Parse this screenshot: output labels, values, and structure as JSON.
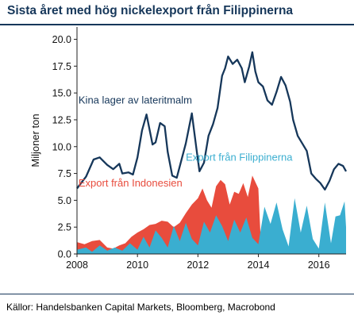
{
  "header": {
    "title": "Sista året med hög nickelexport från Filippinerna"
  },
  "footer": {
    "source": "Källor: Handelsbanken Capital Markets, Bloomberg, Macrobond"
  },
  "chart_data": {
    "type": "area",
    "title": "Sista året med hög nickelexport från Filippinerna",
    "ylabel": "Miljoner ton",
    "xlabel": "",
    "xlim": [
      2008,
      2016.9
    ],
    "ylim": [
      0,
      21
    ],
    "y_ticks": [
      "0.0",
      "2.5",
      "5.0",
      "7.5",
      "10.0",
      "12.5",
      "15.0",
      "17.5",
      "20.0"
    ],
    "x_ticks": [
      "2008",
      "2010",
      "2012",
      "2014",
      "2016"
    ],
    "grid": false,
    "series": [
      {
        "name": "Kina lager av lateritmalm",
        "type": "line",
        "color": "#16375a",
        "x": [
          2008.0,
          2008.3,
          2008.55,
          2008.75,
          2009.0,
          2009.2,
          2009.4,
          2009.5,
          2009.7,
          2009.85,
          2010.0,
          2010.15,
          2010.3,
          2010.5,
          2010.6,
          2010.75,
          2010.9,
          2011.0,
          2011.15,
          2011.3,
          2011.45,
          2011.6,
          2011.8,
          2011.95,
          2012.05,
          2012.2,
          2012.35,
          2012.5,
          2012.65,
          2012.8,
          2012.9,
          2013.0,
          2013.15,
          2013.3,
          2013.45,
          2013.55,
          2013.7,
          2013.8,
          2013.9,
          2014.0,
          2014.15,
          2014.3,
          2014.45,
          2014.6,
          2014.75,
          2014.9,
          2015.05,
          2015.15,
          2015.3,
          2015.45,
          2015.6,
          2015.75,
          2015.9,
          2016.05,
          2016.2,
          2016.35,
          2016.5,
          2016.65,
          2016.8,
          2016.9
        ],
        "values": [
          6.1,
          7.2,
          8.8,
          9.0,
          8.3,
          7.9,
          8.4,
          7.5,
          7.6,
          7.4,
          9.0,
          11.5,
          13.0,
          10.2,
          10.4,
          12.2,
          11.9,
          9.5,
          7.3,
          7.1,
          8.7,
          10.3,
          13.1,
          9.8,
          7.7,
          8.5,
          11.0,
          12.1,
          13.6,
          16.6,
          17.3,
          18.4,
          17.7,
          18.1,
          17.3,
          16.0,
          17.5,
          18.8,
          17.0,
          16.0,
          15.6,
          14.3,
          13.9,
          15.1,
          16.5,
          15.7,
          14.2,
          12.5,
          11.0,
          10.3,
          9.6,
          7.5,
          7.0,
          6.6,
          6.0,
          6.8,
          7.9,
          8.4,
          8.2,
          7.7
        ]
      },
      {
        "name": "Export från Indonesien",
        "type": "area",
        "color": "#e84c3d",
        "x": [
          2008.0,
          2008.25,
          2008.5,
          2008.75,
          2009.0,
          2009.2,
          2009.4,
          2009.6,
          2009.8,
          2010.0,
          2010.2,
          2010.4,
          2010.6,
          2010.8,
          2011.0,
          2011.2,
          2011.4,
          2011.6,
          2011.8,
          2012.0,
          2012.15,
          2012.3,
          2012.45,
          2012.6,
          2012.75,
          2012.9,
          2013.05,
          2013.2,
          2013.35,
          2013.5,
          2013.65,
          2013.8,
          2013.9,
          2014.0,
          2014.05,
          2014.1
        ],
        "values": [
          1.1,
          0.9,
          1.2,
          1.3,
          0.6,
          0.5,
          0.8,
          1.0,
          1.6,
          2.0,
          2.3,
          2.7,
          2.8,
          3.1,
          3.0,
          2.5,
          2.9,
          3.8,
          4.6,
          5.2,
          6.1,
          5.0,
          4.3,
          6.3,
          6.9,
          6.5,
          4.6,
          5.8,
          5.6,
          6.6,
          5.3,
          7.3,
          6.7,
          6.1,
          3.0,
          0.0
        ]
      },
      {
        "name": "Export från Filippinerna",
        "type": "area",
        "color": "#3aaed0",
        "x": [
          2008.0,
          2008.3,
          2008.5,
          2008.75,
          2009.0,
          2009.25,
          2009.5,
          2009.75,
          2010.0,
          2010.2,
          2010.4,
          2010.6,
          2010.8,
          2011.0,
          2011.2,
          2011.4,
          2011.6,
          2011.8,
          2012.0,
          2012.2,
          2012.4,
          2012.6,
          2012.8,
          2013.0,
          2013.2,
          2013.4,
          2013.6,
          2013.8,
          2014.0,
          2014.2,
          2014.4,
          2014.6,
          2014.8,
          2015.0,
          2015.2,
          2015.4,
          2015.6,
          2015.8,
          2016.0,
          2016.2,
          2016.4,
          2016.55,
          2016.7,
          2016.85,
          2016.9
        ],
        "values": [
          0.4,
          0.6,
          0.2,
          0.8,
          0.3,
          0.6,
          0.3,
          1.0,
          0.4,
          1.6,
          0.6,
          2.2,
          1.5,
          0.6,
          2.6,
          1.2,
          2.9,
          1.4,
          0.8,
          3.0,
          2.0,
          3.6,
          2.6,
          1.2,
          3.2,
          2.0,
          3.4,
          1.5,
          0.9,
          4.4,
          2.8,
          4.8,
          2.3,
          0.7,
          5.2,
          2.0,
          4.5,
          1.4,
          0.5,
          4.8,
          1.0,
          3.5,
          3.6,
          4.9,
          2.5
        ]
      }
    ],
    "annotations": [
      {
        "text": "Kina lager av lateritmalm",
        "color": "#16375a",
        "x": 2008.05,
        "y": 14.0
      },
      {
        "text": "Export från Filippinerna",
        "color": "#3aaed0",
        "x": 2011.6,
        "y": 8.7
      },
      {
        "text": "Export från Indonesien",
        "color": "#e84c3d",
        "x": 2008.05,
        "y": 6.3
      }
    ]
  }
}
